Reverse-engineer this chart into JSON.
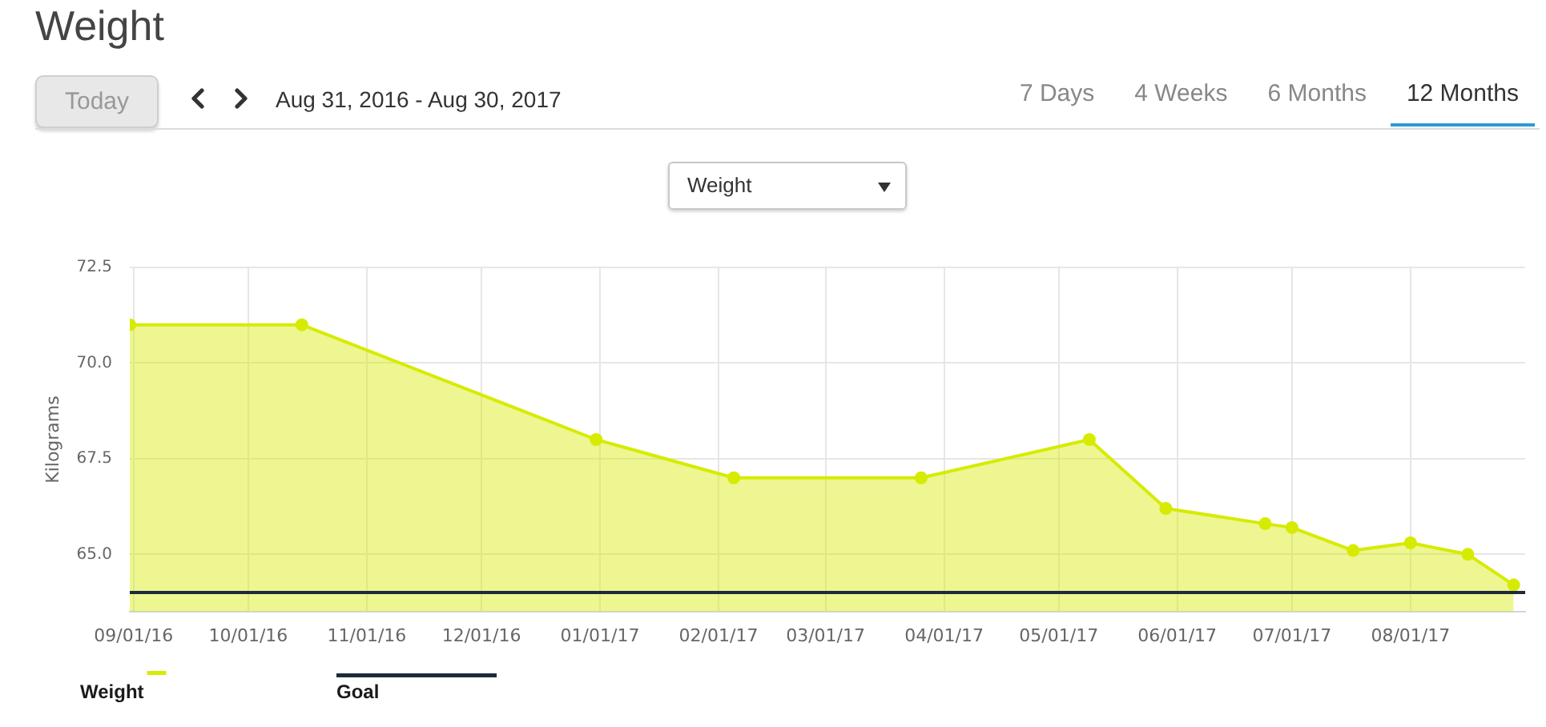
{
  "chart_data": {
    "type": "area",
    "title": "Weight",
    "subtitle": "Aug 31, 2016 - Aug 30, 2017",
    "annotations": [
      "Today",
      "7 Days",
      "4 Weeks",
      "6 Months",
      "12 Months",
      "Weight"
    ],
    "ylabel": "Kilograms",
    "x": [
      "2016-08-31",
      "2016-10-15",
      "2016-12-31",
      "2017-02-05",
      "2017-03-26",
      "2017-05-09",
      "2017-05-29",
      "2017-06-24",
      "2017-07-01",
      "2017-07-17",
      "2017-08-01",
      "2017-08-16",
      "2017-08-28"
    ],
    "series": [
      {
        "name": "Weight",
        "color": "#d6eb00",
        "values": [
          71.0,
          71.0,
          68.0,
          67.0,
          67.0,
          68.0,
          66.2,
          65.8,
          65.7,
          65.1,
          65.3,
          65.0,
          64.2
        ]
      }
    ],
    "xlim": [
      "2016-08-31",
      "2017-08-31"
    ],
    "xticks": [
      {
        "value": "2016-09-01",
        "label": "09/01/16"
      },
      {
        "value": "2016-10-01",
        "label": "10/01/16"
      },
      {
        "value": "2016-11-01",
        "label": "11/01/16"
      },
      {
        "value": "2016-12-01",
        "label": "12/01/16"
      },
      {
        "value": "2017-01-01",
        "label": "01/01/17"
      },
      {
        "value": "2017-02-01",
        "label": "02/01/17"
      },
      {
        "value": "2017-03-01",
        "label": "03/01/17"
      },
      {
        "value": "2017-04-01",
        "label": "04/01/17"
      },
      {
        "value": "2017-05-01",
        "label": "05/01/17"
      },
      {
        "value": "2017-06-01",
        "label": "06/01/17"
      },
      {
        "value": "2017-07-01",
        "label": "07/01/17"
      },
      {
        "value": "2017-08-01",
        "label": "08/01/17"
      }
    ],
    "ylim": [
      63.5,
      72.5
    ],
    "yticks": [
      {
        "value": 65,
        "label": "65.0"
      },
      67.5,
      {
        "value": 70,
        "label": "70.0"
      },
      72.5
    ],
    "ref_lines": [
      {
        "axis": "y",
        "value": 64,
        "label": "Goal",
        "color": "#1c2b3a"
      }
    ],
    "grid": true,
    "legend": "bottom left",
    "marker": "circle"
  }
}
